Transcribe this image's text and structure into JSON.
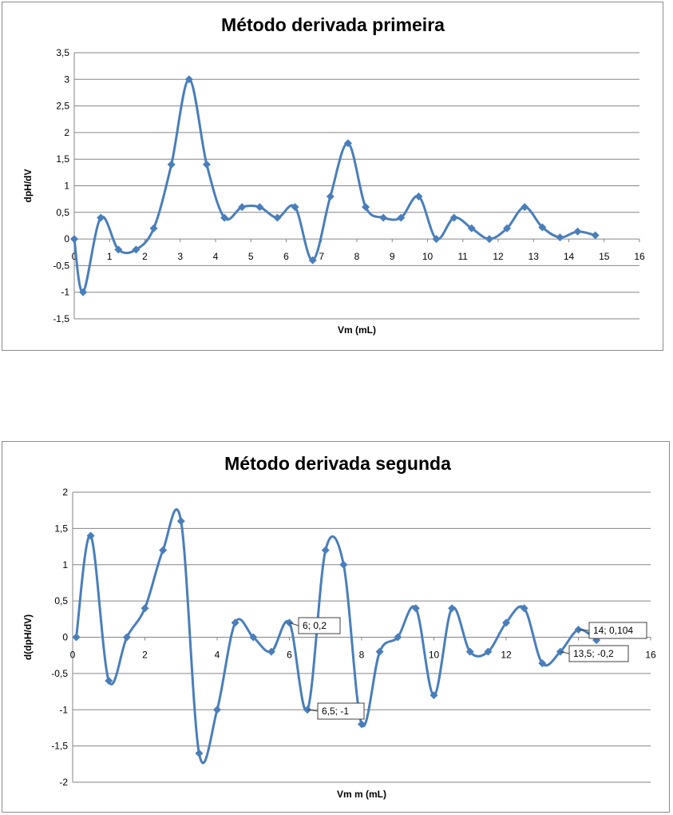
{
  "chart_data": [
    {
      "type": "line",
      "title": "Método derivada primeira",
      "xlabel": "Vm (mL)",
      "ylabel": "dpH/dV",
      "xlim": [
        0,
        16
      ],
      "ylim": [
        -1.5,
        3.5
      ],
      "xticks": [
        "0",
        "1",
        "2",
        "3",
        "4",
        "5",
        "6",
        "7",
        "8",
        "9",
        "10",
        "11",
        "12",
        "13",
        "14",
        "15",
        "16"
      ],
      "yticks": [
        "-1,5",
        "-1",
        "-0,5",
        "0",
        "0,5",
        "1",
        "1,5",
        "2",
        "2,5",
        "3",
        "3,5"
      ],
      "grid": "horizontal",
      "x": [
        0,
        0.25,
        0.75,
        1.25,
        1.75,
        2.25,
        2.75,
        3.25,
        3.75,
        4.25,
        4.75,
        5.25,
        5.75,
        6.25,
        6.75,
        7.25,
        7.75,
        8.25,
        8.75,
        9.25,
        9.75,
        10.25,
        10.75,
        11.25,
        11.75,
        12.25,
        12.75,
        13.25,
        13.75,
        14.25,
        14.75
      ],
      "values": [
        0,
        -1,
        0.4,
        -0.2,
        -0.2,
        0.2,
        1.4,
        3,
        1.4,
        0.4,
        0.6,
        0.6,
        0.4,
        0.6,
        -0.4,
        0.8,
        1.8,
        0.6,
        0.4,
        0.4,
        0.8,
        0,
        0.4,
        0.2,
        0,
        0.2,
        0.6,
        0.22,
        0.03,
        0.14,
        0.07
      ]
    },
    {
      "type": "line",
      "title": "Método derivada segunda",
      "xlabel": "Vm m (mL)",
      "ylabel": "d(dpH/dV)",
      "xlim": [
        0,
        16
      ],
      "ylim": [
        -2,
        2
      ],
      "xticks": [
        "0",
        "2",
        "4",
        "6",
        "8",
        "10",
        "12",
        "14",
        "16"
      ],
      "yticks": [
        "-2",
        "-1,5",
        "-1",
        "-0,5",
        "0",
        "0,5",
        "1",
        "1,5",
        "2"
      ],
      "grid": "horizontal",
      "x": [
        0.1,
        0.5,
        1,
        1.5,
        2,
        2.5,
        3,
        3.5,
        4,
        4.5,
        5,
        5.5,
        6,
        6.5,
        7,
        7.5,
        8,
        8.5,
        9,
        9.5,
        10,
        10.5,
        11,
        11.5,
        12,
        12.5,
        13,
        13.5,
        14,
        14.5
      ],
      "values": [
        0,
        1.4,
        -0.6,
        0,
        0.4,
        1.2,
        1.6,
        -1.6,
        -1,
        0.2,
        0,
        -0.2,
        0.2,
        -1,
        1.2,
        1,
        -1.2,
        -0.2,
        0,
        0.4,
        -0.8,
        0.4,
        -0.2,
        -0.2,
        0.2,
        0.4,
        -0.36,
        -0.2,
        0.104,
        -0.04
      ],
      "annotations": [
        "6; 0,2",
        "6,5; -1",
        "13,5; -0,2",
        "14; 0,104"
      ]
    }
  ]
}
